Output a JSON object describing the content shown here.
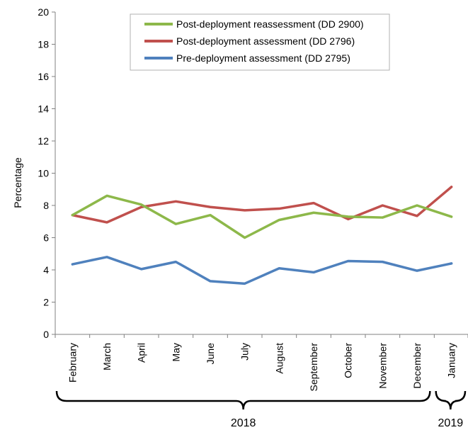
{
  "chart_data": {
    "type": "line",
    "title": "",
    "xlabel": "",
    "ylabel": "Percentage",
    "ylim": [
      0,
      20
    ],
    "yticks": [
      0,
      2,
      4,
      6,
      8,
      10,
      12,
      14,
      16,
      18,
      20
    ],
    "grid": false,
    "legend_position": "top-right",
    "categories": [
      "February",
      "March",
      "April",
      "May",
      "June",
      "July",
      "August",
      "September",
      "October",
      "November",
      "December",
      "January"
    ],
    "year_groups": [
      {
        "label": "2018",
        "from": "February",
        "to": "December"
      },
      {
        "label": "2019",
        "from": "January",
        "to": "January"
      }
    ],
    "series": [
      {
        "name": "Post-deployment reassessment (DD 2900)",
        "color": "#8DB84A",
        "values": [
          7.4,
          8.6,
          8.05,
          6.85,
          7.4,
          6.0,
          7.1,
          7.55,
          7.3,
          7.25,
          8.0,
          7.3
        ]
      },
      {
        "name": "Post-deployment assessment (DD 2796)",
        "color": "#C0504D",
        "values": [
          7.4,
          6.95,
          7.9,
          8.25,
          7.9,
          7.7,
          7.8,
          8.15,
          7.15,
          8.0,
          7.35,
          9.15
        ]
      },
      {
        "name": "Pre-deployment assessment (DD 2795)",
        "color": "#4F81BD",
        "values": [
          4.35,
          4.8,
          4.05,
          4.5,
          3.3,
          3.15,
          4.1,
          3.85,
          4.55,
          4.5,
          3.95,
          4.4
        ]
      }
    ]
  }
}
